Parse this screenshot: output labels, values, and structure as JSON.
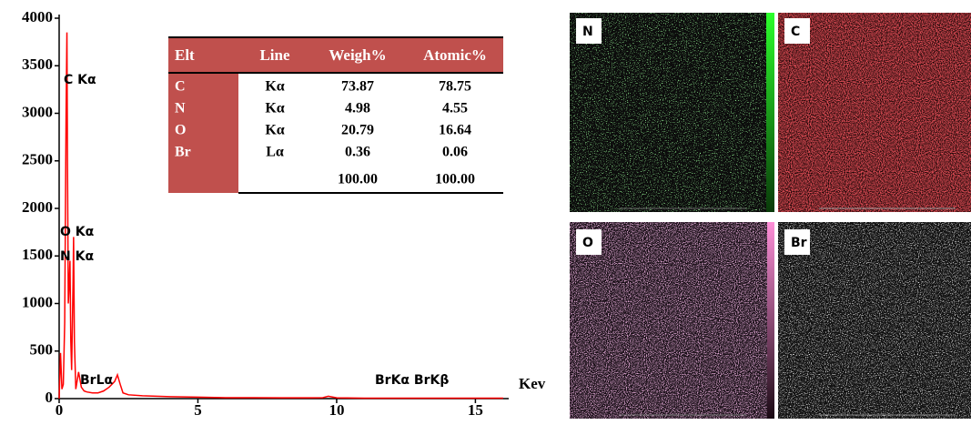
{
  "chart_data": {
    "type": "line",
    "x_label": "Kev",
    "x": [
      0,
      0.05,
      0.1,
      0.15,
      0.2,
      0.25,
      0.28,
      0.3,
      0.33,
      0.36,
      0.39,
      0.42,
      0.45,
      0.5,
      0.52,
      0.55,
      0.6,
      0.7,
      0.8,
      0.9,
      1.0,
      1.2,
      1.4,
      1.6,
      1.8,
      2.0,
      2.1,
      2.2,
      2.3,
      2.5,
      3,
      4,
      5,
      6,
      7,
      8,
      9,
      9.5,
      9.7,
      10,
      11,
      12,
      13,
      14,
      15,
      16
    ],
    "values": [
      0,
      480,
      100,
      150,
      800,
      3000,
      3850,
      2500,
      1000,
      1200,
      1450,
      600,
      300,
      1200,
      1700,
      600,
      100,
      280,
      120,
      80,
      70,
      60,
      60,
      80,
      120,
      180,
      250,
      150,
      60,
      40,
      30,
      20,
      15,
      10,
      10,
      8,
      8,
      10,
      25,
      8,
      5,
      5,
      5,
      5,
      5,
      5
    ],
    "color": "#ff0000",
    "xlim": [
      0,
      16.2
    ],
    "ylim": [
      0,
      4000
    ],
    "xticks": [
      0,
      5,
      10,
      15
    ],
    "yticks": [
      0,
      500,
      1000,
      1500,
      2000,
      2500,
      3000,
      3500,
      4000
    ],
    "annotations": [
      "C Kα",
      "O Kα",
      "N Kα",
      "BrLα",
      "BrKα BrKβ"
    ]
  },
  "table": {
    "header": [
      "Elt",
      "Line",
      "Weigh%",
      "Atomic%"
    ],
    "rows": [
      [
        "C",
        "Kα",
        "73.87",
        "78.75"
      ],
      [
        "N",
        "Kα",
        "4.98",
        "4.55"
      ],
      [
        "O",
        "Kα",
        "20.79",
        "16.64"
      ],
      [
        "Br",
        "Lα",
        "0.36",
        "0.06"
      ],
      [
        null,
        null,
        "100.00",
        "100.00"
      ]
    ]
  },
  "maps": [
    {
      "label": "N"
    },
    {
      "label": "C"
    },
    {
      "label": "O"
    },
    {
      "label": "Br"
    }
  ]
}
